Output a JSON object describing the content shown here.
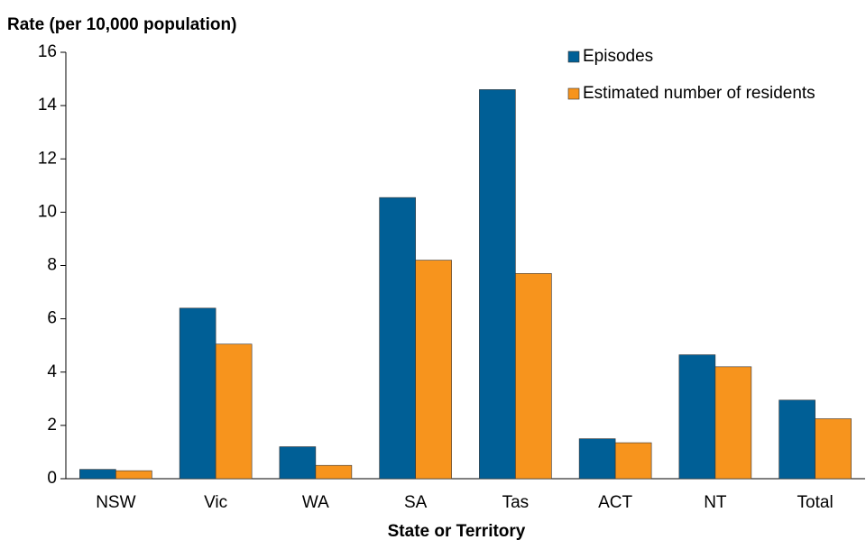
{
  "chart_data": {
    "type": "bar",
    "y_label": "Rate (per 10,000 population)",
    "x_label": "State or Territory",
    "categories": [
      "NSW",
      "Vic",
      "WA",
      "SA",
      "Tas",
      "ACT",
      "NT",
      "Total"
    ],
    "series": [
      {
        "name": "Episodes",
        "color": "#005f96",
        "values": [
          0.35,
          6.4,
          1.2,
          10.55,
          14.6,
          1.5,
          4.65,
          2.95
        ]
      },
      {
        "name": "Estimated number of residents",
        "color": "#f7941d",
        "values": [
          0.3,
          5.05,
          0.5,
          8.2,
          7.7,
          1.35,
          4.2,
          2.25
        ]
      }
    ],
    "ylim": [
      0,
      16
    ],
    "yticks": [
      0,
      2,
      4,
      6,
      8,
      10,
      12,
      14,
      16
    ],
    "grid": false,
    "legend": "top-right"
  }
}
